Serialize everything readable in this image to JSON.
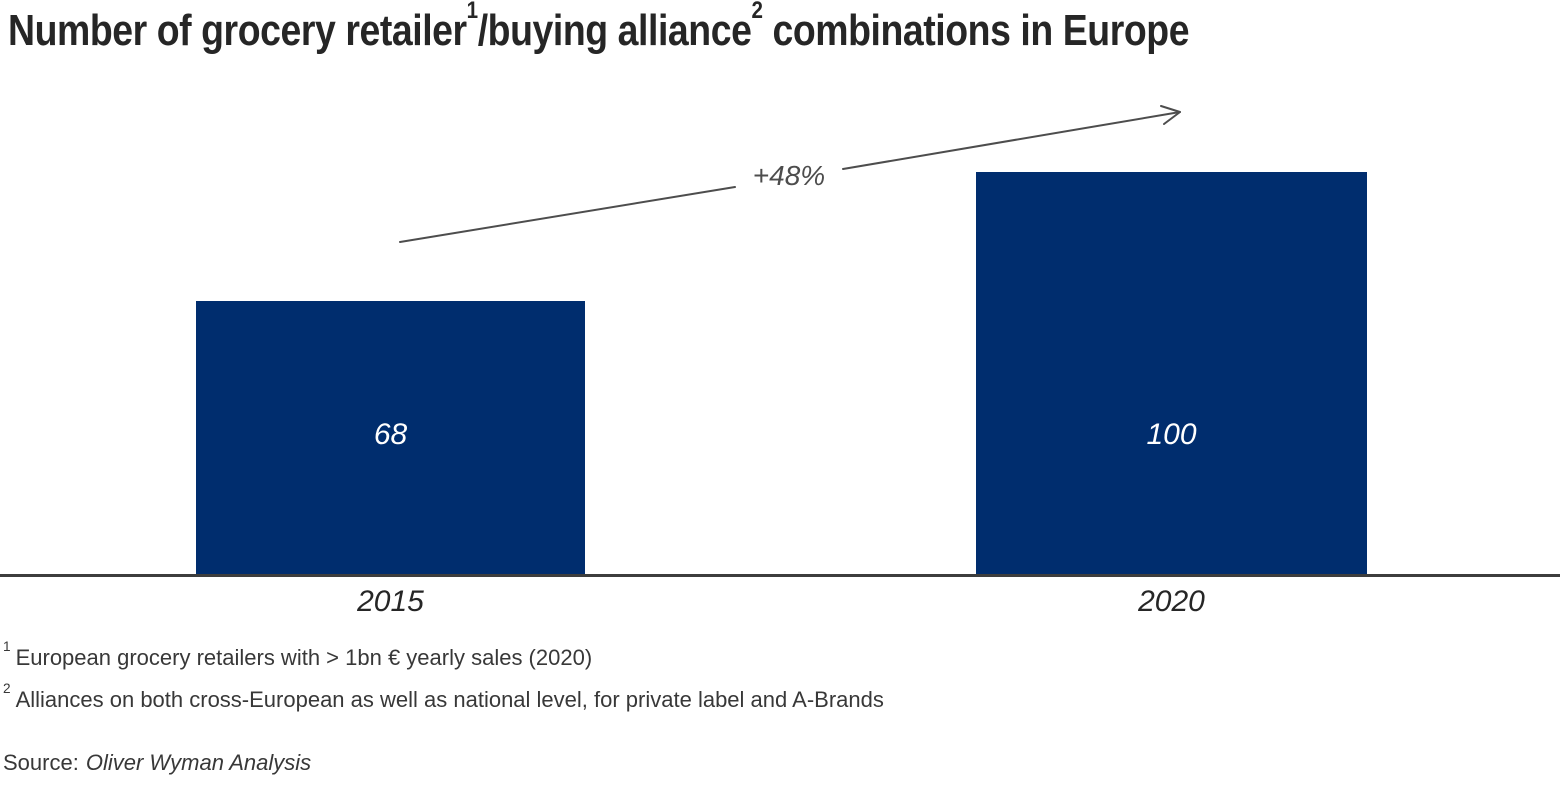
{
  "title": {
    "part1": "Number of grocery retailer",
    "sup1": "1",
    "part2": "/buying alliance",
    "sup2": "2",
    "part3": " combinations in Europe",
    "full": "Number of grocery retailer¹/buying alliance² combinations in Europe"
  },
  "chart_data": {
    "type": "bar",
    "title": "Number of grocery retailer¹/buying alliance² combinations in Europe",
    "categories": [
      "2015",
      "2020"
    ],
    "values": [
      68,
      100
    ],
    "series": [
      {
        "name": "Grocery retailer/buying alliance combinations",
        "values": [
          68,
          100
        ]
      }
    ],
    "annotation": "+48%",
    "xlabel": "",
    "ylabel": "",
    "ylim": [
      0,
      110
    ],
    "grid": false,
    "legend": "none",
    "value_labels": "inside-bar, white italic",
    "bar_color": "#002d6e"
  },
  "footnotes": [
    {
      "sup": "1",
      "text": "European grocery retailers with > 1bn € yearly sales (2020)"
    },
    {
      "sup": "2",
      "text": "Alliances on both cross-European as well as national level, for private label and A-Brands"
    }
  ],
  "source": {
    "label": "Source:",
    "text": "Oliver Wyman Analysis"
  },
  "colors": {
    "bar_blue": "#002d6e",
    "arrow_gray": "#4d4d4d",
    "axis_gray": "#3d3d3d",
    "title_dark": "#262626",
    "footnote_gray": "#383838",
    "value_white": "#ffffff"
  }
}
